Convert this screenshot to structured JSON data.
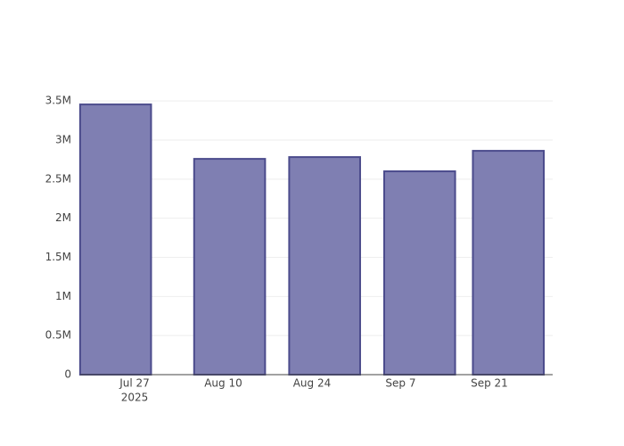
{
  "chart_data": {
    "type": "bar",
    "x": [
      "2025-07-24",
      "2025-08-11",
      "2025-08-26",
      "2025-09-10",
      "2025-09-24"
    ],
    "values": [
      3455000,
      2759000,
      2782000,
      2600000,
      2862000
    ],
    "color": "#7f7fb2",
    "edge_color": "#4b4b8c",
    "xlim": [
      "2025-07-18T10:00:00Z",
      "2025-10-01T00:00:00Z"
    ],
    "xticks": [
      {
        "value": "2025-07-27",
        "label": "Jul 27",
        "sublabel": "2025"
      },
      {
        "value": "2025-08-10",
        "label": "Aug 10"
      },
      {
        "value": "2025-08-24",
        "label": "Aug 24"
      },
      {
        "value": "2025-09-07",
        "label": "Sep 7"
      },
      {
        "value": "2025-09-21",
        "label": "Sep 21"
      }
    ],
    "ylim": [
      0,
      3650000
    ],
    "yticks": [
      0,
      {
        "value": 500000,
        "label": "0.5M"
      },
      {
        "value": 1000000,
        "label": "1M"
      },
      {
        "value": 1500000,
        "label": "1.5M"
      },
      {
        "value": 2000000,
        "label": "2M"
      },
      {
        "value": 2500000,
        "label": "2.5M"
      },
      {
        "value": 3000000,
        "label": "3M"
      },
      {
        "value": 3500000,
        "label": "3.5M"
      }
    ],
    "grid": true
  }
}
